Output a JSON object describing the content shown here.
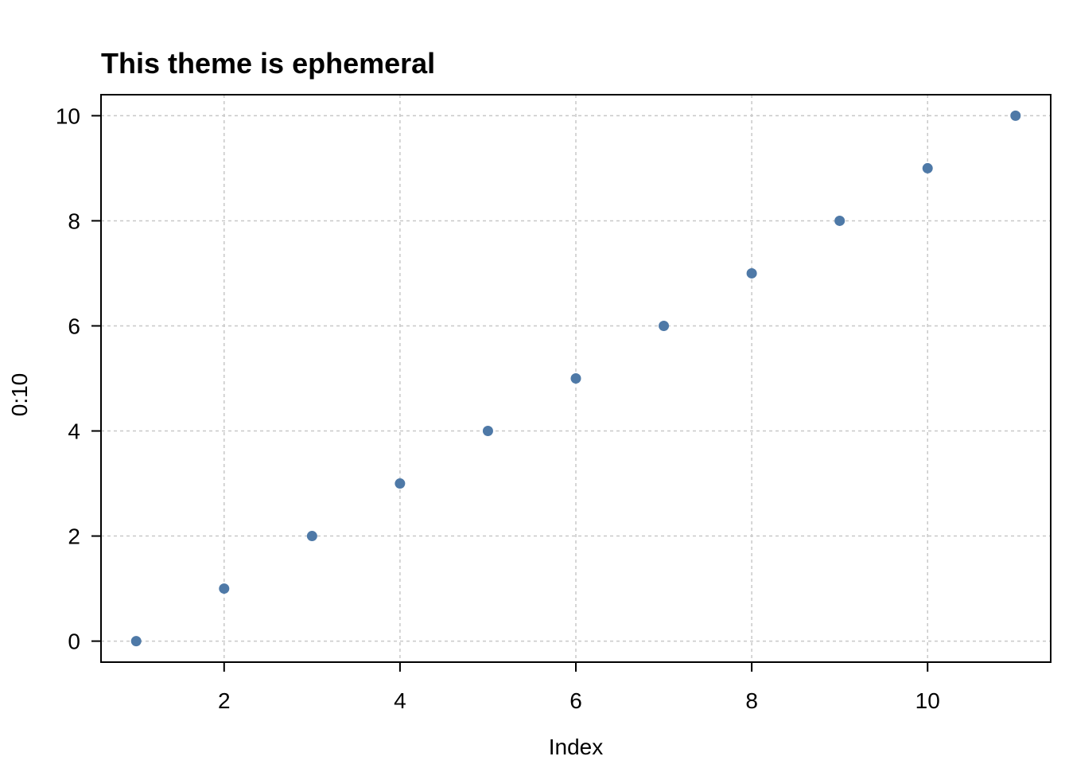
{
  "chart_data": {
    "type": "scatter",
    "title": "This theme is ephemeral",
    "xlabel": "Index",
    "ylabel": "0:10",
    "x": [
      1,
      2,
      3,
      4,
      5,
      6,
      7,
      8,
      9,
      10,
      11
    ],
    "y": [
      0,
      1,
      2,
      3,
      4,
      5,
      6,
      7,
      8,
      9,
      10
    ],
    "xlim": [
      0.6,
      11.4
    ],
    "ylim": [
      -0.4,
      10.4
    ],
    "xticks": [
      2,
      4,
      6,
      8,
      10
    ],
    "yticks": [
      0,
      2,
      4,
      6,
      8,
      10
    ],
    "grid": true,
    "point_color": "#4E79A7"
  }
}
